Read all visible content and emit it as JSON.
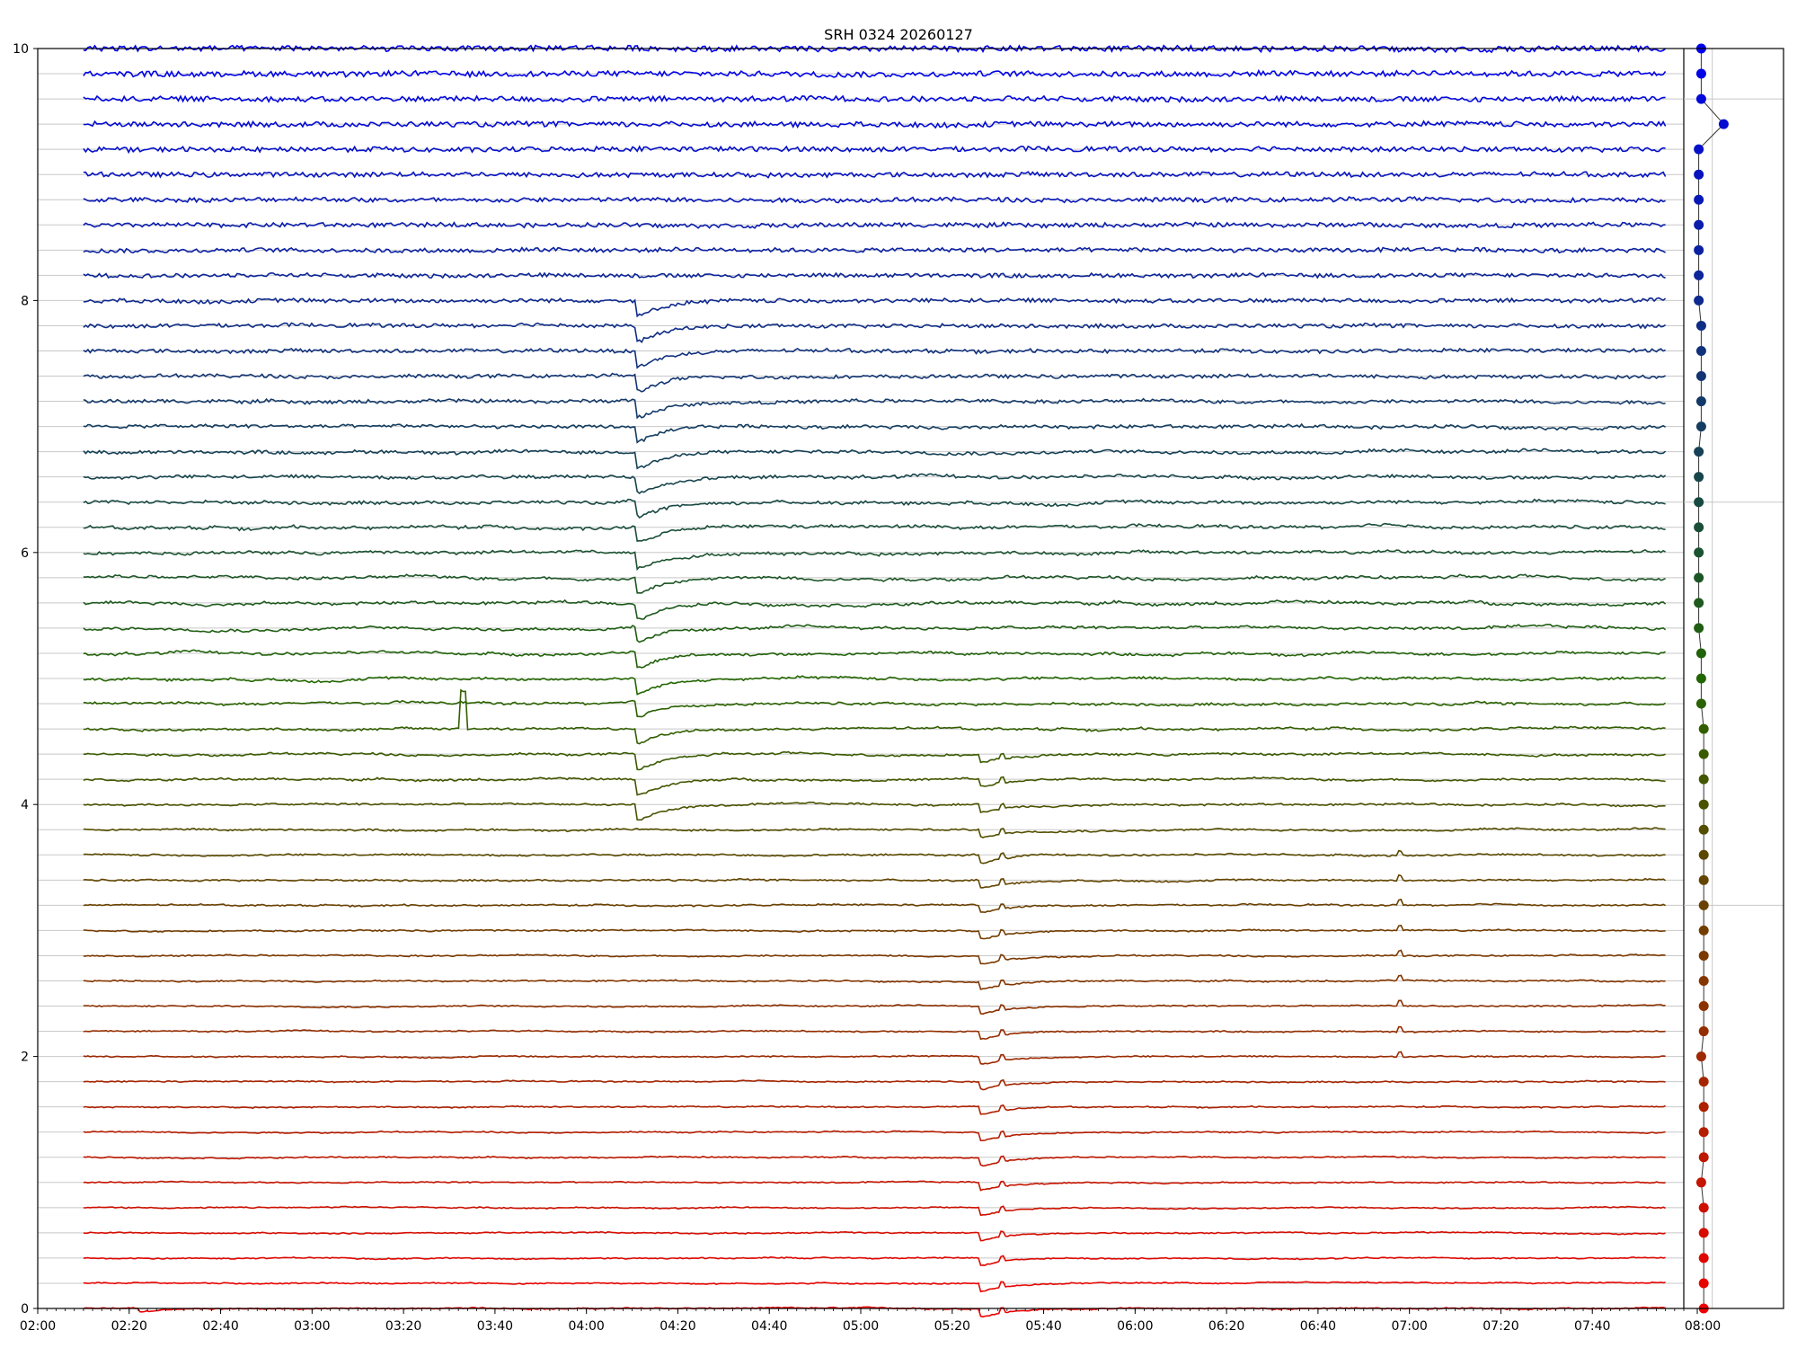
{
  "chart_data": {
    "type": "line",
    "title": "SRH 0324 20260127",
    "xlabel": "",
    "ylabel": "",
    "xlim": [
      "02:00",
      "08:00"
    ],
    "ylim": [
      0,
      10
    ],
    "yticks": [
      0,
      2,
      4,
      6,
      8,
      10
    ],
    "xticks": [
      "02:00",
      "02:20",
      "02:40",
      "03:00",
      "03:20",
      "03:40",
      "04:00",
      "04:20",
      "04:40",
      "05:00",
      "05:20",
      "05:40",
      "06:00",
      "06:20",
      "06:40",
      "07:00",
      "07:20",
      "07:40"
    ],
    "side_panel": {
      "xticks": [
        "08:00"
      ],
      "grid_hlines": [
        3.2,
        6.4,
        9.6
      ],
      "markers_x": [
        8.8,
        8.8,
        8.8,
        8.8,
        8.8,
        8.7,
        8.8,
        8.8,
        8.8,
        8.8,
        8.7,
        8.8,
        8.8,
        8.8,
        8.8,
        8.8,
        8.8,
        8.8,
        8.8,
        8.8,
        8.8,
        8.8,
        8.8,
        8.8,
        8.7,
        8.7,
        8.7,
        8.6,
        8.6,
        8.6,
        8.6,
        8.6,
        8.6,
        8.6,
        8.6,
        8.7,
        8.7,
        8.7,
        8.7,
        8.7,
        8.6,
        8.6,
        8.6,
        8.6,
        8.6,
        8.6,
        8.6,
        9.6,
        8.7,
        8.7,
        8.7
      ]
    },
    "series_count": 51,
    "series_spacing": 0.2,
    "color_bottom": "#ee0000",
    "color_mid": "#226600",
    "color_top": "#0000ee",
    "events": [
      {
        "time": "02:23",
        "ch_min": 0,
        "ch_max": 0,
        "amp": 0.03,
        "kind": "dip"
      },
      {
        "time": "04:12",
        "ch_min": 20,
        "ch_max": 40,
        "amp": 0.12,
        "kind": "dip"
      },
      {
        "time": "05:27",
        "ch_min": 0,
        "ch_max": 22,
        "amp": 0.06,
        "kind": "dip"
      },
      {
        "time": "05:31",
        "ch_min": 0,
        "ch_max": 22,
        "amp": 0.04,
        "kind": "spike"
      },
      {
        "time": "06:58",
        "ch_min": 10,
        "ch_max": 18,
        "amp": 0.04,
        "kind": "spike"
      },
      {
        "time": "03:33",
        "ch_min": 23,
        "ch_max": 23,
        "amp": 0.3,
        "kind": "spike"
      }
    ]
  }
}
